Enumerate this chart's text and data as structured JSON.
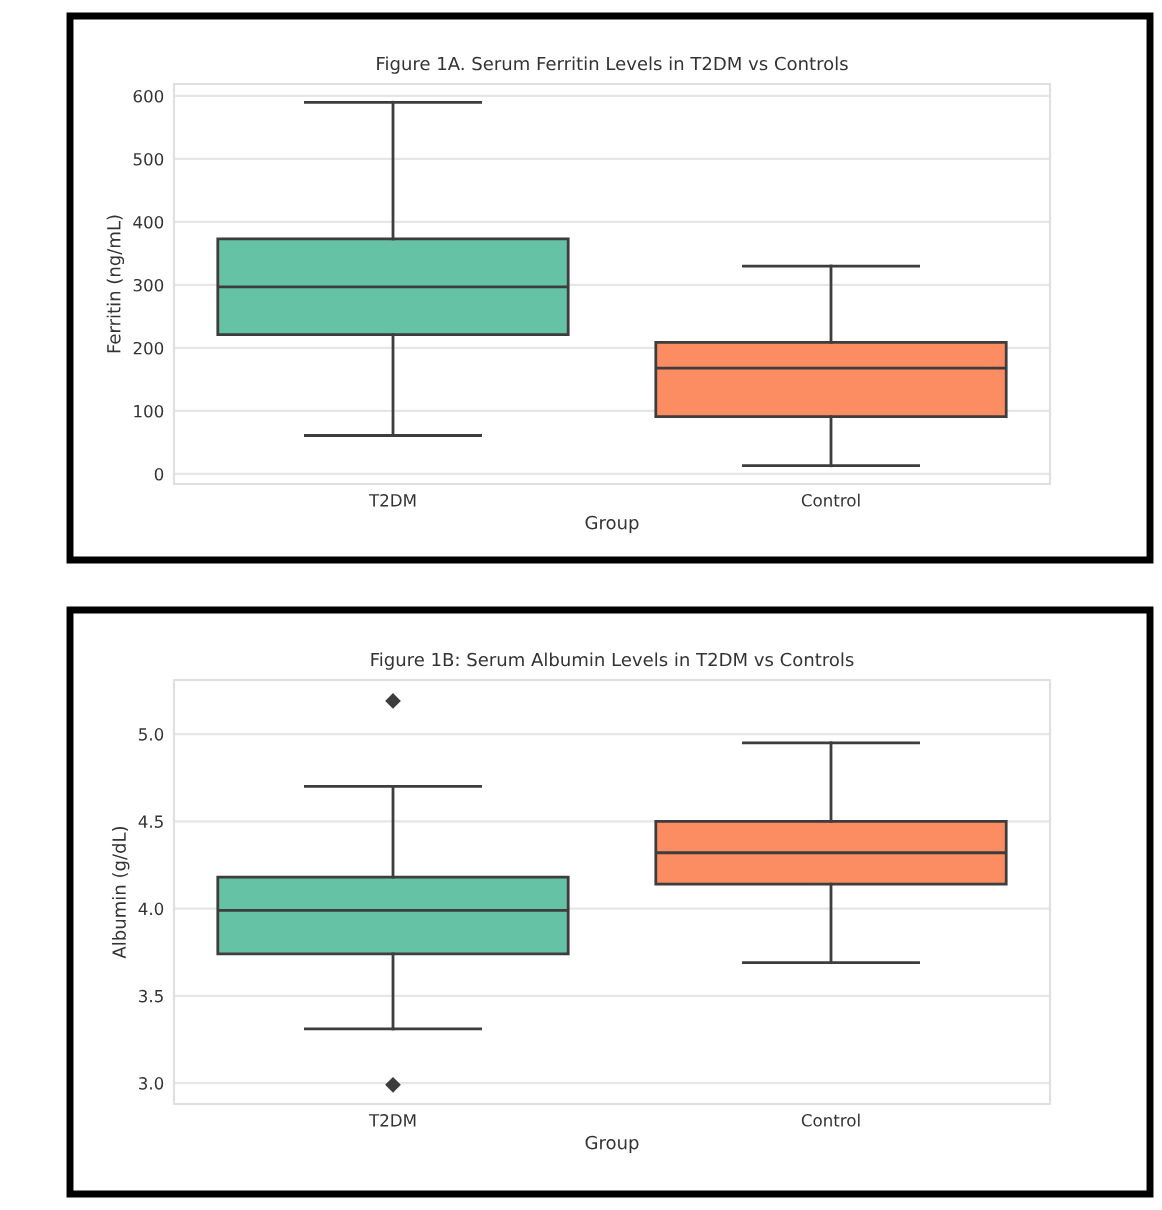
{
  "chart_data": [
    {
      "type": "box",
      "title": "Figure 1A. Serum Ferritin Levels in T2DM vs Controls",
      "xlabel": "Group",
      "ylabel": "Ferritin (ng/mL)",
      "categories": [
        "T2DM",
        "Control"
      ],
      "colors": [
        "#66c2a5",
        "#fc8d62"
      ],
      "boxes": [
        {
          "low": 61,
          "q1": 221,
          "median": 297,
          "q3": 373,
          "high": 590
        },
        {
          "low": 13,
          "q1": 91,
          "median": 168,
          "q3": 209,
          "high": 330
        }
      ],
      "ylim": [
        -16,
        619
      ],
      "yticks": [
        0,
        100,
        200,
        300,
        400,
        500,
        600
      ],
      "grid": "y"
    },
    {
      "type": "box",
      "title": "Figure 1B: Serum Albumin Levels in T2DM vs Controls",
      "xlabel": "Group",
      "ylabel": "Albumin (g/dL)",
      "categories": [
        "T2DM",
        "Control"
      ],
      "colors": [
        "#66c2a5",
        "#fc8d62"
      ],
      "boxes": [
        {
          "low": 3.31,
          "q1": 3.74,
          "median": 3.99,
          "q3": 4.18,
          "high": 4.7,
          "outliers": [
            5.19,
            2.99
          ]
        },
        {
          "low": 3.69,
          "q1": 4.14,
          "median": 4.32,
          "q3": 4.5,
          "high": 4.95
        }
      ],
      "ylim": [
        2.88,
        5.31
      ],
      "yticks": [
        {
          "value": 3.0,
          "label": "3.0"
        },
        {
          "value": 3.5,
          "label": "3.5"
        },
        {
          "value": 4.0,
          "label": "4.0"
        },
        {
          "value": 4.5,
          "label": "4.5"
        },
        {
          "value": 5.0,
          "label": "5.0"
        }
      ],
      "grid": "y"
    }
  ]
}
